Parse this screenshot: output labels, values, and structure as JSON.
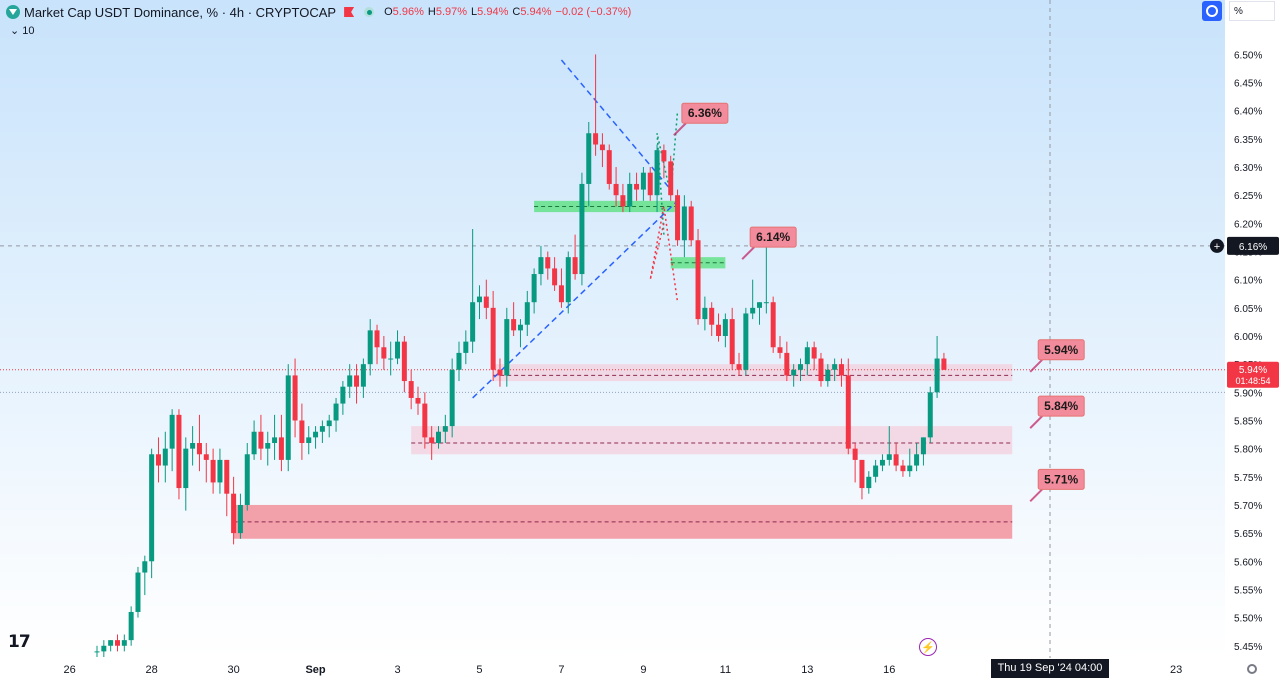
{
  "header": {
    "title": "Market Cap USDT Dominance, % · 4h · CRYPTOCAP",
    "ohlc": [
      {
        "k": "O",
        "v": "5.96%"
      },
      {
        "k": "H",
        "v": "5.97%"
      },
      {
        "k": "L",
        "v": "5.94%"
      },
      {
        "k": "C",
        "v": "5.94%"
      },
      {
        "k": "",
        "v": "−0.02 (−0.37%)"
      }
    ],
    "volume_toggle": "10",
    "scale_mode": "%"
  },
  "crosshair_date": "Thu 19 Sep '24   04:00",
  "colors": {
    "up": "#089981",
    "down": "#f23645",
    "bg_top": "#c8e3fb",
    "bg_bottom": "#ffffff",
    "zone_dark": "#f23645",
    "zone_light": "#f7c6d3",
    "green_zone": "#53e07a",
    "annotation_fill": "#f28b9b",
    "trend_line": "#2962ff"
  },
  "chart_data": {
    "type": "candlestick",
    "title": "Market Cap USDT Dominance, % · 4h · CRYPTOCAP",
    "y_unit": "%",
    "ylim": [
      5.42,
      6.55
    ],
    "y_ticks": [
      "6.50%",
      "6.45%",
      "6.40%",
      "6.35%",
      "6.30%",
      "6.25%",
      "6.20%",
      "6.15%",
      "6.10%",
      "6.05%",
      "6.00%",
      "5.95%",
      "5.90%",
      "5.85%",
      "5.80%",
      "5.75%",
      "5.70%",
      "5.65%",
      "5.60%",
      "5.55%",
      "5.50%",
      "5.45%"
    ],
    "x_ticks": [
      {
        "label": "26",
        "i": -4
      },
      {
        "label": "28",
        "i": 8
      },
      {
        "label": "30",
        "i": 20
      },
      {
        "label": "Sep",
        "i": 32
      },
      {
        "label": "3",
        "i": 44
      },
      {
        "label": "5",
        "i": 56
      },
      {
        "label": "7",
        "i": 68
      },
      {
        "label": "9",
        "i": 80
      },
      {
        "label": "11",
        "i": 92
      },
      {
        "label": "13",
        "i": 104
      },
      {
        "label": "16",
        "i": 116
      },
      {
        "label": "23",
        "i": 158
      }
    ],
    "grid": false,
    "current_price": {
      "value": "5.94%",
      "countdown": "01:48:54",
      "y": 5.94
    },
    "crosshair_price": {
      "value": "6.16%",
      "y": 6.16
    },
    "ohlc": [
      [
        5.44,
        5.45,
        5.43,
        5.44
      ],
      [
        5.44,
        5.46,
        5.43,
        5.45
      ],
      [
        5.45,
        5.46,
        5.44,
        5.46
      ],
      [
        5.46,
        5.47,
        5.44,
        5.45
      ],
      [
        5.45,
        5.47,
        5.44,
        5.46
      ],
      [
        5.46,
        5.52,
        5.45,
        5.51
      ],
      [
        5.51,
        5.59,
        5.5,
        5.58
      ],
      [
        5.58,
        5.61,
        5.54,
        5.6
      ],
      [
        5.6,
        5.8,
        5.57,
        5.79
      ],
      [
        5.79,
        5.82,
        5.74,
        5.77
      ],
      [
        5.77,
        5.83,
        5.74,
        5.8
      ],
      [
        5.8,
        5.87,
        5.76,
        5.86
      ],
      [
        5.86,
        5.87,
        5.71,
        5.73
      ],
      [
        5.73,
        5.82,
        5.69,
        5.8
      ],
      [
        5.8,
        5.84,
        5.77,
        5.81
      ],
      [
        5.81,
        5.86,
        5.76,
        5.79
      ],
      [
        5.79,
        5.81,
        5.74,
        5.78
      ],
      [
        5.78,
        5.8,
        5.72,
        5.74
      ],
      [
        5.74,
        5.8,
        5.72,
        5.78
      ],
      [
        5.78,
        5.78,
        5.68,
        5.72
      ],
      [
        5.72,
        5.75,
        5.63,
        5.65
      ],
      [
        5.65,
        5.72,
        5.64,
        5.7
      ],
      [
        5.7,
        5.81,
        5.69,
        5.79
      ],
      [
        5.79,
        5.85,
        5.78,
        5.83
      ],
      [
        5.83,
        5.86,
        5.78,
        5.8
      ],
      [
        5.8,
        5.83,
        5.77,
        5.81
      ],
      [
        5.81,
        5.86,
        5.78,
        5.82
      ],
      [
        5.82,
        5.86,
        5.76,
        5.78
      ],
      [
        5.78,
        5.95,
        5.76,
        5.93
      ],
      [
        5.93,
        5.96,
        5.82,
        5.85
      ],
      [
        5.85,
        5.88,
        5.78,
        5.81
      ],
      [
        5.81,
        5.84,
        5.79,
        5.82
      ],
      [
        5.82,
        5.84,
        5.8,
        5.83
      ],
      [
        5.83,
        5.85,
        5.81,
        5.84
      ],
      [
        5.84,
        5.86,
        5.82,
        5.85
      ],
      [
        5.85,
        5.89,
        5.83,
        5.88
      ],
      [
        5.88,
        5.92,
        5.86,
        5.91
      ],
      [
        5.91,
        5.95,
        5.89,
        5.93
      ],
      [
        5.93,
        5.95,
        5.88,
        5.91
      ],
      [
        5.91,
        5.96,
        5.89,
        5.95
      ],
      [
        5.95,
        6.03,
        5.93,
        6.01
      ],
      [
        6.01,
        6.02,
        5.95,
        5.98
      ],
      [
        5.98,
        6.0,
        5.94,
        5.96
      ],
      [
        5.96,
        5.99,
        5.93,
        5.96
      ],
      [
        5.96,
        6.01,
        5.95,
        5.99
      ],
      [
        5.99,
        6.0,
        5.9,
        5.92
      ],
      [
        5.92,
        5.94,
        5.87,
        5.89
      ],
      [
        5.89,
        5.91,
        5.86,
        5.88
      ],
      [
        5.88,
        5.9,
        5.8,
        5.82
      ],
      [
        5.82,
        5.84,
        5.78,
        5.81
      ],
      [
        5.81,
        5.84,
        5.8,
        5.83
      ],
      [
        5.83,
        5.86,
        5.81,
        5.84
      ],
      [
        5.84,
        5.96,
        5.82,
        5.94
      ],
      [
        5.94,
        5.99,
        5.92,
        5.97
      ],
      [
        5.97,
        6.01,
        5.95,
        5.99
      ],
      [
        5.99,
        6.19,
        5.97,
        6.06
      ],
      [
        6.06,
        6.09,
        6.03,
        6.07
      ],
      [
        6.07,
        6.1,
        6.03,
        6.05
      ],
      [
        6.05,
        6.08,
        5.92,
        5.94
      ],
      [
        5.94,
        5.96,
        5.91,
        5.93
      ],
      [
        5.93,
        6.05,
        5.91,
        6.03
      ],
      [
        6.03,
        6.06,
        6.0,
        6.01
      ],
      [
        6.01,
        6.03,
        5.98,
        6.02
      ],
      [
        6.02,
        6.08,
        6.0,
        6.06
      ],
      [
        6.06,
        6.12,
        6.04,
        6.11
      ],
      [
        6.11,
        6.16,
        6.09,
        6.14
      ],
      [
        6.14,
        6.15,
        6.1,
        6.12
      ],
      [
        6.12,
        6.14,
        6.08,
        6.09
      ],
      [
        6.09,
        6.12,
        6.05,
        6.06
      ],
      [
        6.06,
        6.15,
        6.04,
        6.14
      ],
      [
        6.14,
        6.18,
        6.1,
        6.11
      ],
      [
        6.11,
        6.29,
        6.09,
        6.27
      ],
      [
        6.27,
        6.38,
        6.23,
        6.36
      ],
      [
        6.36,
        6.5,
        6.32,
        6.34
      ],
      [
        6.34,
        6.36,
        6.3,
        6.33
      ],
      [
        6.33,
        6.34,
        6.26,
        6.27
      ],
      [
        6.27,
        6.3,
        6.23,
        6.25
      ],
      [
        6.25,
        6.27,
        6.22,
        6.23
      ],
      [
        6.23,
        6.29,
        6.22,
        6.27
      ],
      [
        6.27,
        6.29,
        6.24,
        6.26
      ],
      [
        6.26,
        6.3,
        6.24,
        6.29
      ],
      [
        6.29,
        6.3,
        6.24,
        6.25
      ],
      [
        6.25,
        6.34,
        6.22,
        6.33
      ],
      [
        6.33,
        6.34,
        6.28,
        6.31
      ],
      [
        6.31,
        6.32,
        6.24,
        6.25
      ],
      [
        6.25,
        6.26,
        6.16,
        6.17
      ],
      [
        6.17,
        6.25,
        6.14,
        6.23
      ],
      [
        6.23,
        6.24,
        6.16,
        6.17
      ],
      [
        6.17,
        6.19,
        6.02,
        6.03
      ],
      [
        6.03,
        6.07,
        6.01,
        6.05
      ],
      [
        6.05,
        6.06,
        6.0,
        6.02
      ],
      [
        6.02,
        6.04,
        5.99,
        6.0
      ],
      [
        6.0,
        6.04,
        5.98,
        6.03
      ],
      [
        6.03,
        6.05,
        5.94,
        5.95
      ],
      [
        5.95,
        5.97,
        5.93,
        5.94
      ],
      [
        5.94,
        6.05,
        5.93,
        6.04
      ],
      [
        6.04,
        6.1,
        6.03,
        6.05
      ],
      [
        6.05,
        6.06,
        6.02,
        6.06
      ],
      [
        6.06,
        6.16,
        6.04,
        6.06
      ],
      [
        6.06,
        6.07,
        5.97,
        5.98
      ],
      [
        5.98,
        6.0,
        5.96,
        5.97
      ],
      [
        5.97,
        5.99,
        5.92,
        5.93
      ],
      [
        5.93,
        5.95,
        5.91,
        5.94
      ],
      [
        5.94,
        5.96,
        5.92,
        5.95
      ],
      [
        5.95,
        5.99,
        5.93,
        5.98
      ],
      [
        5.98,
        5.99,
        5.94,
        5.96
      ],
      [
        5.96,
        5.97,
        5.91,
        5.92
      ],
      [
        5.92,
        5.95,
        5.91,
        5.94
      ],
      [
        5.94,
        5.96,
        5.92,
        5.95
      ],
      [
        5.95,
        5.96,
        5.91,
        5.93
      ],
      [
        5.93,
        5.96,
        5.79,
        5.8
      ],
      [
        5.8,
        5.81,
        5.74,
        5.78
      ],
      [
        5.78,
        5.78,
        5.71,
        5.73
      ],
      [
        5.73,
        5.76,
        5.72,
        5.75
      ],
      [
        5.75,
        5.78,
        5.74,
        5.77
      ],
      [
        5.77,
        5.79,
        5.76,
        5.78
      ],
      [
        5.78,
        5.84,
        5.77,
        5.79
      ],
      [
        5.79,
        5.81,
        5.76,
        5.77
      ],
      [
        5.77,
        5.78,
        5.75,
        5.76
      ],
      [
        5.76,
        5.8,
        5.75,
        5.77
      ],
      [
        5.77,
        5.81,
        5.76,
        5.79
      ],
      [
        5.79,
        5.82,
        5.77,
        5.82
      ],
      [
        5.82,
        5.91,
        5.81,
        5.9
      ],
      [
        5.9,
        6.0,
        5.89,
        5.96
      ],
      [
        5.96,
        5.97,
        5.94,
        5.94
      ]
    ],
    "zones": [
      {
        "type": "dark",
        "top": 5.7,
        "bottom": 5.64,
        "mid": 5.67,
        "i_start": 20,
        "i_end": 134
      },
      {
        "type": "light",
        "top": 5.84,
        "bottom": 5.79,
        "mid": 5.81,
        "i_start": 46,
        "i_end": 134
      },
      {
        "type": "light",
        "top": 5.95,
        "bottom": 5.92,
        "mid": 5.93,
        "i_start": 58,
        "i_end": 134
      },
      {
        "type": "green",
        "top": 6.24,
        "bottom": 6.22,
        "mid": 6.23,
        "i_start": 64,
        "i_end": 85
      },
      {
        "type": "green",
        "top": 6.14,
        "bottom": 6.12,
        "mid": 6.13,
        "i_start": 84,
        "i_end": 92
      }
    ],
    "annotations": [
      {
        "label": "6.36%",
        "y": 6.36,
        "i": 89
      },
      {
        "label": "6.14%",
        "y": 6.14,
        "i": 99
      },
      {
        "label": "5.94%",
        "y": 5.94,
        "i": 140
      },
      {
        "label": "5.84%",
        "y": 5.84,
        "i": 140
      },
      {
        "label": "5.71%",
        "y": 5.71,
        "i": 140
      }
    ],
    "trend_lines": [
      {
        "from": [
          55,
          5.89
        ],
        "to": [
          85,
          6.24
        ]
      },
      {
        "from": [
          68,
          6.49
        ],
        "to": [
          84,
          6.26
        ]
      }
    ],
    "projections": [
      {
        "color": "green",
        "points": [
          [
            83,
            6.18
          ],
          [
            82,
            6.36
          ],
          [
            84,
            6.25
          ],
          [
            85,
            6.4
          ]
        ]
      },
      {
        "color": "red",
        "points": [
          [
            83,
            6.2
          ],
          [
            81,
            6.1
          ],
          [
            83,
            6.23
          ],
          [
            85,
            6.06
          ]
        ]
      }
    ]
  }
}
